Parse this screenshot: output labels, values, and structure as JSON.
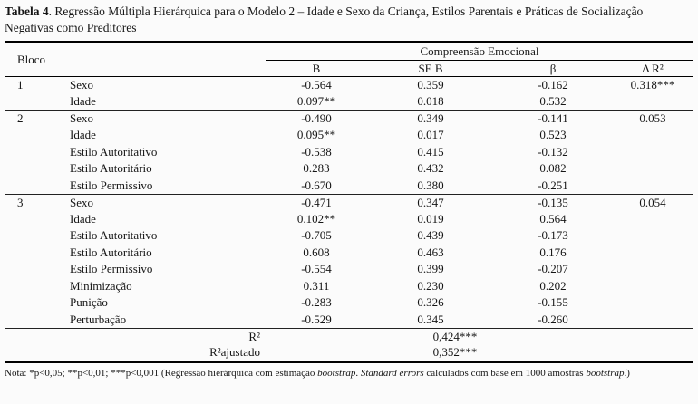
{
  "title": {
    "label": "Tabela 4",
    "rest": ". Regressão Múltipla Hierárquica para o Modelo 2 – Idade e Sexo da Criança, Estilos Parentais e Práticas de Socialização Negativas como Preditores"
  },
  "table": {
    "header": {
      "bloco": "Bloco",
      "group": "Compreensão Emocional",
      "columns": [
        "B",
        "SE B",
        "β",
        "Δ R²"
      ]
    },
    "blocks": [
      {
        "number": "1",
        "rows": [
          {
            "predictor": "Sexo",
            "b": "-0.564",
            "se_b": "0.359",
            "beta": "-0.162",
            "delta_r2": "0.318***"
          },
          {
            "predictor": "Idade",
            "b": "0.097**",
            "se_b": "0.018",
            "beta": "0.532",
            "delta_r2": ""
          }
        ]
      },
      {
        "number": "2",
        "rows": [
          {
            "predictor": "Sexo",
            "b": "-0.490",
            "se_b": "0.349",
            "beta": "-0.141",
            "delta_r2": "0.053"
          },
          {
            "predictor": "Idade",
            "b": "0.095**",
            "se_b": "0.017",
            "beta": "0.523",
            "delta_r2": ""
          },
          {
            "predictor": "Estilo Autoritativo",
            "b": "-0.538",
            "se_b": "0.415",
            "beta": "-0.132",
            "delta_r2": ""
          },
          {
            "predictor": "Estilo Autoritário",
            "b": "0.283",
            "se_b": "0.432",
            "beta": "0.082",
            "delta_r2": ""
          },
          {
            "predictor": "Estilo Permissivo",
            "b": "-0.670",
            "se_b": "0.380",
            "beta": "-0.251",
            "delta_r2": ""
          }
        ]
      },
      {
        "number": "3",
        "rows": [
          {
            "predictor": "Sexo",
            "b": "-0.471",
            "se_b": "0.347",
            "beta": "-0.135",
            "delta_r2": "0.054"
          },
          {
            "predictor": "Idade",
            "b": "0.102**",
            "se_b": "0.019",
            "beta": "0.564",
            "delta_r2": ""
          },
          {
            "predictor": "Estilo Autoritativo",
            "b": "-0.705",
            "se_b": "0.439",
            "beta": "-0.173",
            "delta_r2": ""
          },
          {
            "predictor": "Estilo Autoritário",
            "b": "0.608",
            "se_b": "0.463",
            "beta": "0.176",
            "delta_r2": ""
          },
          {
            "predictor": "Estilo Permissivo",
            "b": "-0.554",
            "se_b": "0.399",
            "beta": "-0.207",
            "delta_r2": ""
          },
          {
            "predictor": "Minimização",
            "b": "0.311",
            "se_b": "0.230",
            "beta": "0.202",
            "delta_r2": ""
          },
          {
            "predictor": "Punição",
            "b": "-0.283",
            "se_b": "0.326",
            "beta": "-0.155",
            "delta_r2": ""
          },
          {
            "predictor": "Perturbação",
            "b": "-0.529",
            "se_b": "0.345",
            "beta": "-0.260",
            "delta_r2": ""
          }
        ]
      }
    ],
    "footer": [
      {
        "label": "R²",
        "value": "0,424***"
      },
      {
        "label": "R²ajustado",
        "value": "0,352***"
      }
    ]
  },
  "note": {
    "segments": [
      {
        "text": "Nota: *p<0,05; **p<0,01; ***p<0,001 (Regressão hierárquica com estimação ",
        "italic": false
      },
      {
        "text": "bootstrap",
        "italic": true
      },
      {
        "text": ". ",
        "italic": false
      },
      {
        "text": "Standard errors",
        "italic": true
      },
      {
        "text": " calculados com base em 1000 amostras ",
        "italic": false
      },
      {
        "text": "bootstrap",
        "italic": true
      },
      {
        "text": ".)",
        "italic": false
      }
    ]
  },
  "colors": {
    "background": "#fbfbfb",
    "text": "#151515",
    "rule": "#000000"
  }
}
